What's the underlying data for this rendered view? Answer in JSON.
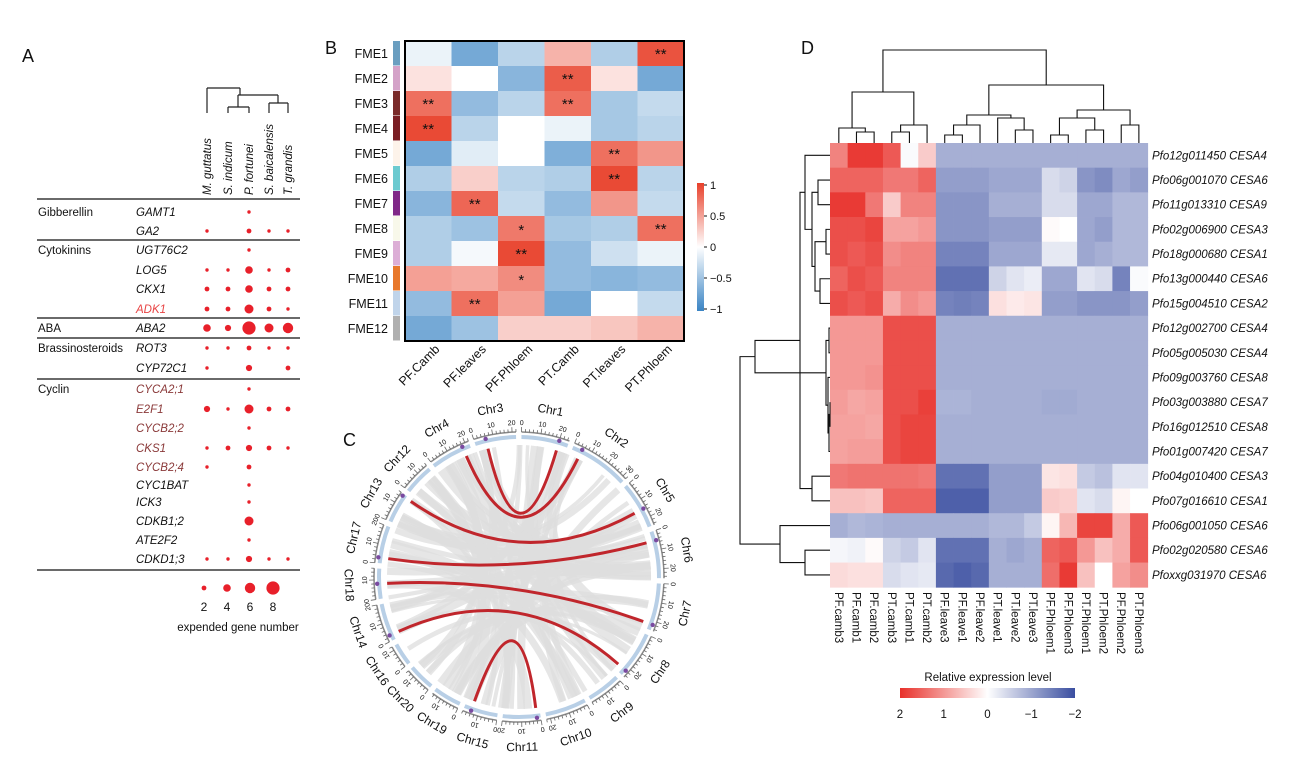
{
  "panel_labels": [
    "A",
    "B",
    "C",
    "D"
  ],
  "chart_data": [
    {
      "type": "scatter",
      "panel": "A",
      "columns": [
        "M. guttatus",
        "S. indicum",
        "P. fortunei",
        "S. baicalensis",
        "T. grandis"
      ],
      "groups": [
        {
          "name": "Gibberellin",
          "genes": [
            {
              "gene": "GAMT1",
              "values": [
                0,
                0,
                1,
                0,
                0
              ]
            },
            {
              "gene": "GA2",
              "values": [
                1,
                0,
                2,
                1,
                1
              ]
            }
          ]
        },
        {
          "name": "Cytokinins",
          "genes": [
            {
              "gene": "UGT76C2",
              "values": [
                0,
                0,
                1,
                0,
                0
              ]
            },
            {
              "gene": "LOG5",
              "values": [
                1,
                1,
                4,
                1,
                2
              ]
            },
            {
              "gene": "CKX1",
              "values": [
                2,
                2,
                4,
                2,
                2
              ]
            },
            {
              "gene": "ADK1",
              "values": [
                2,
                2,
                5,
                2,
                1
              ],
              "color": "#e84545"
            }
          ]
        },
        {
          "name": "ABA",
          "genes": [
            {
              "gene": "ABA2",
              "values": [
                4,
                3,
                8,
                5,
                6
              ]
            }
          ]
        },
        {
          "name": "Brassinosteroids",
          "genes": [
            {
              "gene": "ROT3",
              "values": [
                1,
                1,
                2,
                1,
                1
              ]
            },
            {
              "gene": "CYP72C1",
              "values": [
                1,
                0,
                3,
                0,
                2
              ]
            }
          ]
        },
        {
          "name": "Cyclin",
          "genes": [
            {
              "gene": "CYCA2;1",
              "values": [
                0,
                0,
                1,
                0,
                0
              ],
              "color": "#8b3a3a"
            },
            {
              "gene": "E2F1",
              "values": [
                3,
                1,
                5,
                2,
                2
              ],
              "color": "#8b3a3a"
            },
            {
              "gene": "CYCB2;2",
              "values": [
                0,
                0,
                1,
                0,
                0
              ],
              "color": "#8b3a3a"
            },
            {
              "gene": "CKS1",
              "values": [
                1,
                2,
                3,
                2,
                1
              ],
              "color": "#8b3a3a"
            },
            {
              "gene": "CYCB2;4",
              "values": [
                1,
                0,
                2,
                0,
                0
              ],
              "color": "#8b3a3a"
            },
            {
              "gene": "CYC1BAT",
              "values": [
                0,
                0,
                1,
                0,
                0
              ]
            },
            {
              "gene": "ICK3",
              "values": [
                0,
                0,
                1,
                0,
                0
              ]
            },
            {
              "gene": "CDKB1;2",
              "values": [
                0,
                0,
                5,
                0,
                0
              ]
            },
            {
              "gene": "ATE2F2",
              "values": [
                0,
                0,
                1,
                0,
                0
              ]
            },
            {
              "gene": "CDKD1;3",
              "values": [
                1,
                1,
                3,
                1,
                1
              ]
            }
          ]
        }
      ],
      "legend": {
        "values": [
          2,
          4,
          6,
          8
        ],
        "title": "expended gene number"
      },
      "dot_color": "#e8202a"
    },
    {
      "type": "heatmap",
      "panel": "B",
      "rows": [
        "FME1",
        "FME2",
        "FME3",
        "FME4",
        "FME5",
        "FME6",
        "FME7",
        "FME8",
        "FME9",
        "FME10",
        "FME11",
        "FME12"
      ],
      "row_colors": [
        "#6a9ec0",
        "#d4a2c8",
        "#7a2a2a",
        "#7a1e24",
        "#fdf3ea",
        "#6ccad0",
        "#802888",
        "#f8f8ea",
        "#dcaed6",
        "#e8782c",
        "#c0d4ea",
        "#b0b0b0"
      ],
      "columns": [
        "PF.Camb",
        "PF.leaves",
        "PF.Phloem",
        "PT.Camb",
        "PT.leaves",
        "PT.Phloem"
      ],
      "values": [
        [
          -0.1,
          -0.7,
          -0.35,
          0.4,
          -0.4,
          0.9
        ],
        [
          0.15,
          0,
          -0.6,
          0.85,
          0.15,
          -0.7
        ],
        [
          0.75,
          -0.55,
          -0.35,
          0.75,
          -0.45,
          -0.3
        ],
        [
          0.95,
          -0.35,
          0,
          -0.1,
          -0.45,
          -0.35
        ],
        [
          -0.7,
          -0.15,
          0,
          -0.65,
          0.75,
          0.55
        ],
        [
          -0.4,
          0.25,
          -0.35,
          -0.4,
          0.95,
          -0.35
        ],
        [
          -0.6,
          0.8,
          -0.3,
          -0.55,
          0.55,
          -0.3
        ],
        [
          -0.4,
          -0.5,
          0.7,
          -0.45,
          -0.4,
          0.75
        ],
        [
          -0.4,
          -0.05,
          0.95,
          -0.55,
          -0.25,
          -0.1
        ],
        [
          0.5,
          0.45,
          0.6,
          -0.55,
          -0.6,
          -0.55
        ],
        [
          -0.55,
          0.75,
          0.5,
          -0.7,
          0,
          -0.3
        ],
        [
          -0.7,
          -0.5,
          0.25,
          0.25,
          0.3,
          0.4
        ]
      ],
      "significance": [
        [
          "",
          "",
          "",
          "",
          "",
          "**"
        ],
        [
          "",
          "",
          "",
          "**",
          "",
          ""
        ],
        [
          "**",
          "",
          "",
          "**",
          "",
          ""
        ],
        [
          "**",
          "",
          "",
          "",
          "",
          ""
        ],
        [
          "",
          "",
          "",
          "",
          "**",
          ""
        ],
        [
          "",
          "",
          "",
          "",
          "**",
          ""
        ],
        [
          "",
          "**",
          "",
          "",
          "",
          ""
        ],
        [
          "",
          "",
          "*",
          "",
          "",
          "**"
        ],
        [
          "",
          "",
          "**",
          "",
          "",
          ""
        ],
        [
          "",
          "",
          "*",
          "",
          "",
          ""
        ],
        [
          "",
          "**",
          "",
          "",
          "",
          ""
        ],
        [
          "",
          "",
          "",
          "",
          "",
          ""
        ]
      ],
      "colorbar": {
        "ticks": [
          1,
          0.5,
          0,
          -0.5,
          -1
        ],
        "tick_labels": [
          "1",
          "0.5",
          "0",
          "−0.5",
          "−1"
        ],
        "range": [
          -1,
          1
        ],
        "low": "#3a84c4",
        "mid": "#ffffff",
        "high": "#e8402a"
      }
    },
    {
      "type": "circos",
      "panel": "C",
      "chromosomes": [
        {
          "name": "Chr1",
          "length": 25
        },
        {
          "name": "Chr2",
          "length": 32
        },
        {
          "name": "Chr5",
          "length": 25
        },
        {
          "name": "Chr6",
          "length": 25
        },
        {
          "name": "Chr7",
          "length": 25
        },
        {
          "name": "Chr8",
          "length": 25
        },
        {
          "name": "Chr9",
          "length": 18
        },
        {
          "name": "Chr10",
          "length": 22
        },
        {
          "name": "Chr11",
          "length": 20
        },
        {
          "name": "Chr15",
          "length": 18
        },
        {
          "name": "Chr19",
          "length": 15
        },
        {
          "name": "Chr20",
          "length": 14
        },
        {
          "name": "Chr16",
          "length": 12
        },
        {
          "name": "Chr14",
          "length": 20
        },
        {
          "name": "Chr18",
          "length": 16
        },
        {
          "name": "Chr17",
          "length": 20
        },
        {
          "name": "Chr13",
          "length": 16
        },
        {
          "name": "Chr12",
          "length": 16
        },
        {
          "name": "Chr4",
          "length": 22
        },
        {
          "name": "Chr3",
          "length": 22
        }
      ],
      "highlighted_links": [
        {
          "from": [
            "Chr4",
            18
          ],
          "to": [
            "Chr2",
            5
          ]
        },
        {
          "from": [
            "Chr3",
            6
          ],
          "to": [
            "Chr1",
            20
          ]
        },
        {
          "from": [
            "Chr13",
            15
          ],
          "to": [
            "Chr5",
            15
          ]
        },
        {
          "from": [
            "Chr17",
            3
          ],
          "to": [
            "Chr6",
            5
          ]
        },
        {
          "from": [
            "Chr18",
            8
          ],
          "to": [
            "Chr7",
            22
          ]
        },
        {
          "from": [
            "Chr14",
            3
          ],
          "to": [
            "Chr8",
            22
          ]
        },
        {
          "from": [
            "Chr15",
            14
          ],
          "to": [
            "Chr11",
            2
          ]
        }
      ],
      "link_color": "#c0262c",
      "background_link_color": "#dedede",
      "marker_color": "#7a4aa0"
    },
    {
      "type": "heatmap",
      "panel": "D",
      "rows": [
        "Pfo12g011450 CESA4",
        "Pfo06g001070 CESA6",
        "Pfo11g013310 CESA9",
        "Pfo02g006900 CESA3",
        "Pfo18g000680 CESA1",
        "Pfo13g000440 CESA6",
        "Pfo15g004510 CESA2",
        "Pfo12g002700 CESA4",
        "Pfo05g005030 CESA4",
        "Pfo09g003760 CESA8",
        "Pfo03g003880 CESA7",
        "Pfo16g012510 CESA8",
        "Pfo01g007420 CESA7",
        "Pfo04g010400 CESA3",
        "Pfo07g016610 CESA1",
        "Pfo06g001050 CESA6",
        "Pfo02g020580 CESA6",
        "Pfoxxg031970 CESA6"
      ],
      "columns": [
        "PF.camb3",
        "PF.camb1",
        "PF.camb2",
        "PT.camb3",
        "PT.camb1",
        "PT.camb2",
        "PF.leave3",
        "PF.leave1",
        "PF.leave2",
        "PT.leave1",
        "PT.leave2",
        "PT.leave3",
        "PF.Phloem1",
        "PF.Phloem3",
        "PT.Phloem1",
        "PT.Phloem2",
        "PF.Phloem2",
        "PT.Phloem3"
      ],
      "values": [
        [
          1.2,
          1.9,
          1.9,
          1.6,
          -0.05,
          0.5,
          -0.9,
          -0.9,
          -0.9,
          -0.9,
          -0.9,
          -0.9,
          -0.9,
          -0.9,
          -0.9,
          -0.9,
          -0.9,
          -0.9
        ],
        [
          1.5,
          1.5,
          1.5,
          1.3,
          1.3,
          1.5,
          -1.1,
          -1.1,
          -1.1,
          -1.0,
          -1.0,
          -1.0,
          -0.4,
          -0.5,
          -1.2,
          -1.3,
          -1.0,
          -1.1
        ],
        [
          1.9,
          1.9,
          1.3,
          0.5,
          1.2,
          1.2,
          -1.2,
          -1.2,
          -1.2,
          -0.9,
          -0.9,
          -0.9,
          -0.4,
          -0.4,
          -1.0,
          -1.0,
          -0.8,
          -0.8
        ],
        [
          1.7,
          1.7,
          1.8,
          0.9,
          0.9,
          1.0,
          -1.2,
          -1.2,
          -1.2,
          -1.1,
          -1.1,
          -1.1,
          0.05,
          0,
          -1.0,
          -1.1,
          -0.8,
          -0.8
        ],
        [
          1.7,
          1.6,
          1.7,
          1.1,
          1.2,
          1.2,
          -1.4,
          -1.4,
          -1.4,
          -1.0,
          -1.0,
          -1.0,
          -0.25,
          -0.25,
          -1.0,
          -0.9,
          -0.8,
          -0.8
        ],
        [
          1.5,
          1.7,
          1.6,
          1.2,
          1.2,
          1.2,
          -1.6,
          -1.6,
          -1.6,
          -0.5,
          -0.3,
          -0.2,
          -1.0,
          -1.0,
          -0.3,
          -0.4,
          -1.4,
          -0.05
        ],
        [
          1.7,
          1.6,
          1.7,
          0.8,
          1.1,
          1.0,
          -1.4,
          -1.45,
          -1.4,
          0.3,
          0.2,
          0.25,
          -1.1,
          -1.1,
          -1.2,
          -1.2,
          -1.2,
          -1.1
        ],
        [
          1.0,
          1.0,
          1.0,
          1.7,
          1.7,
          1.7,
          -0.9,
          -0.9,
          -0.9,
          -0.9,
          -0.9,
          -0.9,
          -0.9,
          -0.9,
          -0.9,
          -0.9,
          -0.9,
          -0.9
        ],
        [
          1.0,
          1.0,
          1.0,
          1.7,
          1.7,
          1.7,
          -0.9,
          -0.9,
          -0.9,
          -0.9,
          -0.9,
          -0.9,
          -0.9,
          -0.9,
          -0.9,
          -0.9,
          -0.9,
          -0.9
        ],
        [
          1.0,
          1.0,
          1.05,
          1.7,
          1.7,
          1.7,
          -0.9,
          -0.9,
          -0.9,
          -0.9,
          -0.9,
          -0.9,
          -0.9,
          -0.9,
          -0.9,
          -0.9,
          -0.9,
          -0.9
        ],
        [
          0.95,
          0.85,
          0.9,
          1.7,
          1.7,
          1.85,
          -0.85,
          -0.85,
          -0.9,
          -0.9,
          -0.9,
          -0.9,
          -0.95,
          -0.95,
          -0.9,
          -0.9,
          -0.9,
          -0.9
        ],
        [
          0.9,
          0.9,
          0.85,
          1.7,
          1.8,
          1.8,
          -0.9,
          -0.9,
          -0.9,
          -0.9,
          -0.9,
          -0.9,
          -0.9,
          -0.9,
          -0.9,
          -0.9,
          -0.9,
          -0.9
        ],
        [
          0.9,
          0.95,
          0.95,
          1.7,
          1.8,
          1.8,
          -0.9,
          -0.9,
          -0.9,
          -0.9,
          -0.9,
          -0.9,
          -0.9,
          -0.9,
          -0.9,
          -0.9,
          -0.9,
          -0.9
        ],
        [
          1.3,
          1.35,
          1.35,
          1.35,
          1.35,
          1.3,
          -1.6,
          -1.6,
          -1.6,
          -1.1,
          -1.1,
          -1.1,
          0.25,
          0.3,
          -0.6,
          -0.7,
          -0.3,
          -0.3
        ],
        [
          0.6,
          0.6,
          0.55,
          1.5,
          1.5,
          1.5,
          -1.8,
          -1.8,
          -1.8,
          -1.1,
          -1.1,
          -1.1,
          0.5,
          0.45,
          -0.3,
          -0.4,
          0.1,
          0
        ],
        [
          -0.9,
          -0.8,
          -0.85,
          -0.9,
          -0.9,
          -0.9,
          -0.9,
          -0.9,
          -0.9,
          -0.8,
          -0.8,
          -0.6,
          0.1,
          0.7,
          1.8,
          1.8,
          0.8,
          1.6
        ],
        [
          -0.1,
          -0.15,
          0.05,
          -0.5,
          -0.6,
          -0.3,
          -1.6,
          -1.6,
          -1.6,
          -0.9,
          -1.0,
          -0.9,
          1.5,
          1.6,
          1.0,
          0.6,
          0.8,
          1.6
        ],
        [
          0.35,
          0.3,
          0.3,
          -0.4,
          -0.3,
          -0.25,
          -1.7,
          -1.8,
          -1.7,
          -0.9,
          -0.9,
          -0.9,
          1.4,
          1.9,
          0.6,
          0,
          0.9,
          1.1
        ]
      ],
      "colorbar": {
        "title": "Relative expression level",
        "ticks": [
          2,
          1,
          0,
          -1,
          -2
        ],
        "tick_labels": [
          "2",
          "1",
          "0",
          "−1",
          "−2"
        ],
        "range": [
          -2,
          2
        ],
        "low": "#3a4ea0",
        "mid": "#ffffff",
        "high": "#e8302a"
      }
    }
  ]
}
